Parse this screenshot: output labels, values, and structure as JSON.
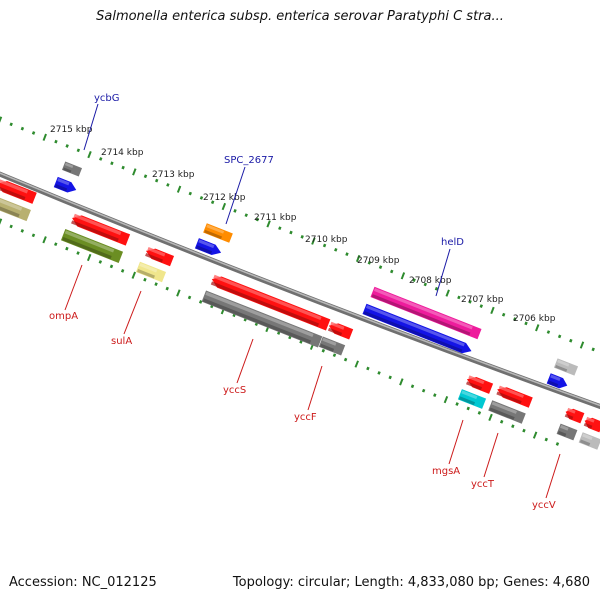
{
  "title": "Salmonella enterica subsp. enterica serovar Paratyphi C stra...",
  "footer": {
    "accession": "Accession: NC_012125",
    "topology": "Topology: circular; Length: 4,833,080 bp; Genes: 4,680"
  },
  "ticks": [
    "2715 kbp",
    "2714 kbp",
    "2713 kbp",
    "2712 kbp",
    "2711 kbp",
    "2710 kbp",
    "2709 kbp",
    "2708 kbp",
    "2707 kbp",
    "2706 kbp"
  ],
  "gene_labels": [
    "ycbG",
    "SPC_2677",
    "helD",
    "ompA",
    "sulA",
    "yccS",
    "yccF",
    "mgsA",
    "yccT",
    "yccV"
  ],
  "colors": {
    "backbone": "#808080",
    "tick_dots": "#2e8b2e",
    "label_top": "#1a1aa6",
    "label_bottom": "#cc1a1a",
    "red": "#ff1111",
    "grey": "#777777",
    "blue": "#1414e6",
    "olive": "#6b8e23",
    "khaki": "#b8b070",
    "yellow": "#f0e68c",
    "orange": "#ff8c00",
    "magenta": "#ee1c9c",
    "cyan": "#00c8d2",
    "lightgrey": "#bbbbbb"
  }
}
